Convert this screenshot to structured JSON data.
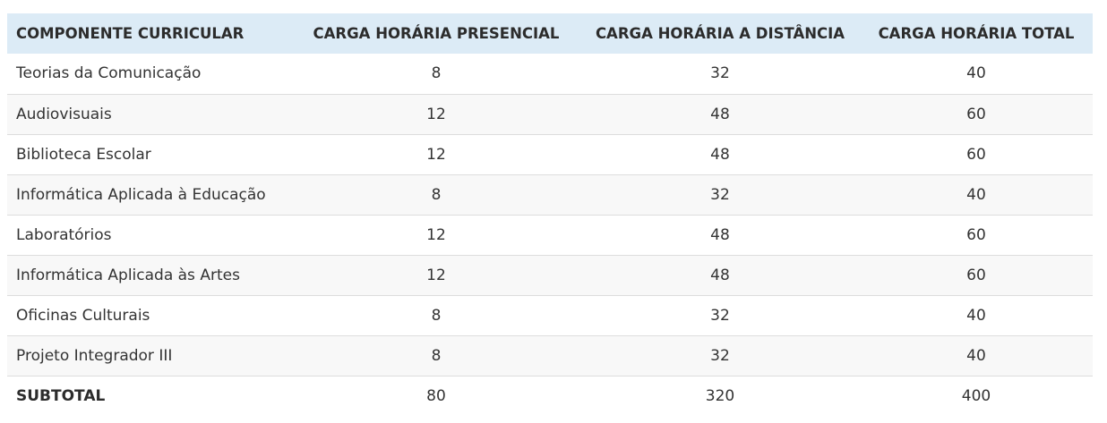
{
  "table": {
    "headers": [
      "COMPONENTE CURRICULAR",
      "CARGA HORÁRIA PRESENCIAL",
      "CARGA HORÁRIA A DISTÂNCIA",
      "CARGA HORÁRIA TOTAL"
    ],
    "rows": [
      [
        "Teorias da Comunicação",
        "8",
        "32",
        "40"
      ],
      [
        "Audiovisuais",
        "12",
        "48",
        "60"
      ],
      [
        "Biblioteca Escolar",
        "12",
        "48",
        "60"
      ],
      [
        "Informática Aplicada à Educação",
        "8",
        "32",
        "40"
      ],
      [
        "Laboratórios",
        "12",
        "48",
        "60"
      ],
      [
        "Informática Aplicada às Artes",
        "12",
        "48",
        "60"
      ],
      [
        "Oficinas Culturais",
        "8",
        "32",
        "40"
      ],
      [
        "Projeto Integrador III",
        "8",
        "32",
        "40"
      ]
    ],
    "subtotal": [
      "SUBTOTAL",
      "80",
      "320",
      "400"
    ]
  },
  "colors": {
    "header_background": "#dcebf6",
    "row_alt_background": "#f8f8f8",
    "row_divider": "#dddddd",
    "text": "#333333"
  }
}
